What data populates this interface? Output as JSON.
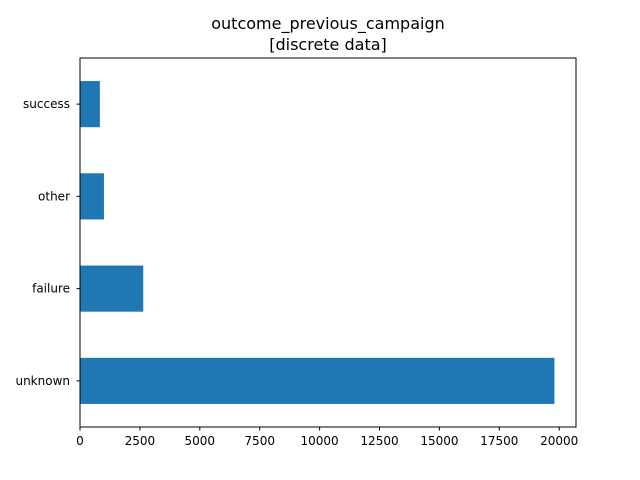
{
  "chart_data": {
    "type": "bar",
    "orientation": "horizontal",
    "title_line1": "outcome_previous_campaign",
    "title_line2": "[discrete data]",
    "xlabel": "",
    "ylabel": "",
    "categories": [
      "unknown",
      "failure",
      "other",
      "success"
    ],
    "values": [
      19800,
      2640,
      1000,
      830
    ],
    "xlim": [
      0,
      20700
    ],
    "xticks": [
      0,
      2500,
      5000,
      7500,
      10000,
      12500,
      15000,
      17500,
      20000
    ],
    "xtick_labels": [
      "0",
      "2500",
      "5000",
      "7500",
      "10000",
      "12500",
      "15000",
      "17500",
      "20000"
    ],
    "grid": false,
    "legend": "none",
    "bar_color": "#1f77b4"
  }
}
